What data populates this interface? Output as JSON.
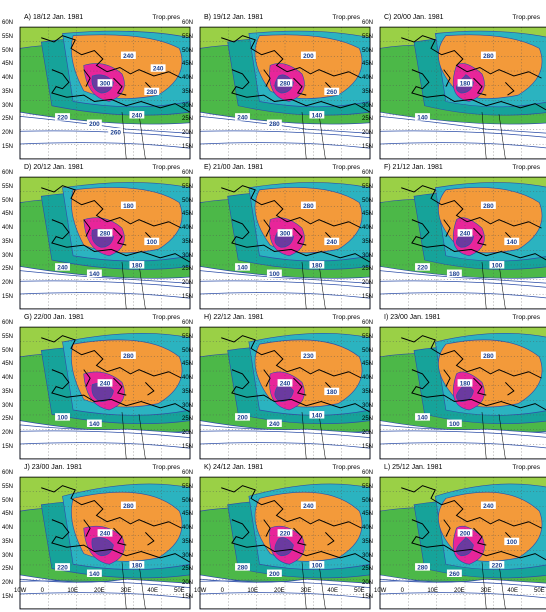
{
  "panels": [
    {
      "title": "A) 18/12 Jan. 1981",
      "tag": "Trop.pres",
      "labels": [
        "300",
        "240",
        "220",
        "200",
        "240",
        "280",
        "260",
        "240"
      ]
    },
    {
      "title": "B) 19/12 Jan. 1981",
      "tag": "Trop.pres",
      "labels": [
        "280",
        "200",
        "240",
        "280",
        "140",
        "260"
      ]
    },
    {
      "title": "C) 20/00 Jan. 1981",
      "tag": "Trop.pres",
      "labels": [
        "180",
        "280",
        "140"
      ]
    },
    {
      "title": "D) 20/12 Jan. 1981",
      "tag": "Trop.pres",
      "labels": [
        "280",
        "180",
        "240",
        "140",
        "180",
        "100"
      ]
    },
    {
      "title": "E) 21/00 Jan. 1981",
      "tag": "Trop.pres",
      "labels": [
        "300",
        "280",
        "140",
        "100",
        "180",
        "240"
      ]
    },
    {
      "title": "F) 21/12 Jan. 1981",
      "tag": "Trop.pres",
      "labels": [
        "240",
        "280",
        "220",
        "180",
        "100",
        "140"
      ]
    },
    {
      "title": "G) 22/00 Jan. 1981",
      "tag": "Trop.pres",
      "labels": [
        "240",
        "280",
        "100",
        "140"
      ]
    },
    {
      "title": "H) 22/12 Jan. 1981",
      "tag": "Trop.pres",
      "labels": [
        "240",
        "230",
        "200",
        "240",
        "140",
        "180"
      ]
    },
    {
      "title": "I) 23/00 Jan. 1981",
      "tag": "Trop.pres",
      "labels": [
        "180",
        "280",
        "140",
        "100"
      ]
    },
    {
      "title": "J) 23/00 Jan. 1981",
      "tag": "Trop.pres",
      "labels": [
        "240",
        "280",
        "220",
        "140",
        "180"
      ]
    },
    {
      "title": "K) 24/12 Jan. 1981",
      "tag": "Trop.pres",
      "labels": [
        "220",
        "240",
        "280",
        "200",
        "100"
      ]
    },
    {
      "title": "L) 25/12 Jan. 1981",
      "tag": "Trop.pres",
      "labels": [
        "200",
        "240",
        "280",
        "260",
        "220",
        "100"
      ]
    }
  ],
  "lat_ticks": [
    "60N",
    "55N",
    "50N",
    "45N",
    "40N",
    "35N",
    "30N",
    "25N",
    "20N",
    "15N"
  ],
  "lon_ticks": [
    "10W",
    "0",
    "10E",
    "20E",
    "30E",
    "40E",
    "50E"
  ],
  "colors": {
    "orange": "#f39a3a",
    "magenta": "#e8259a",
    "purple": "#6b3aa0",
    "cyan": "#2bb3c0",
    "teal": "#16a39a",
    "green": "#4cb848",
    "lime": "#9ad046",
    "contour": "#2e4fa8",
    "coast": "#000000",
    "land": "#ffffff"
  }
}
